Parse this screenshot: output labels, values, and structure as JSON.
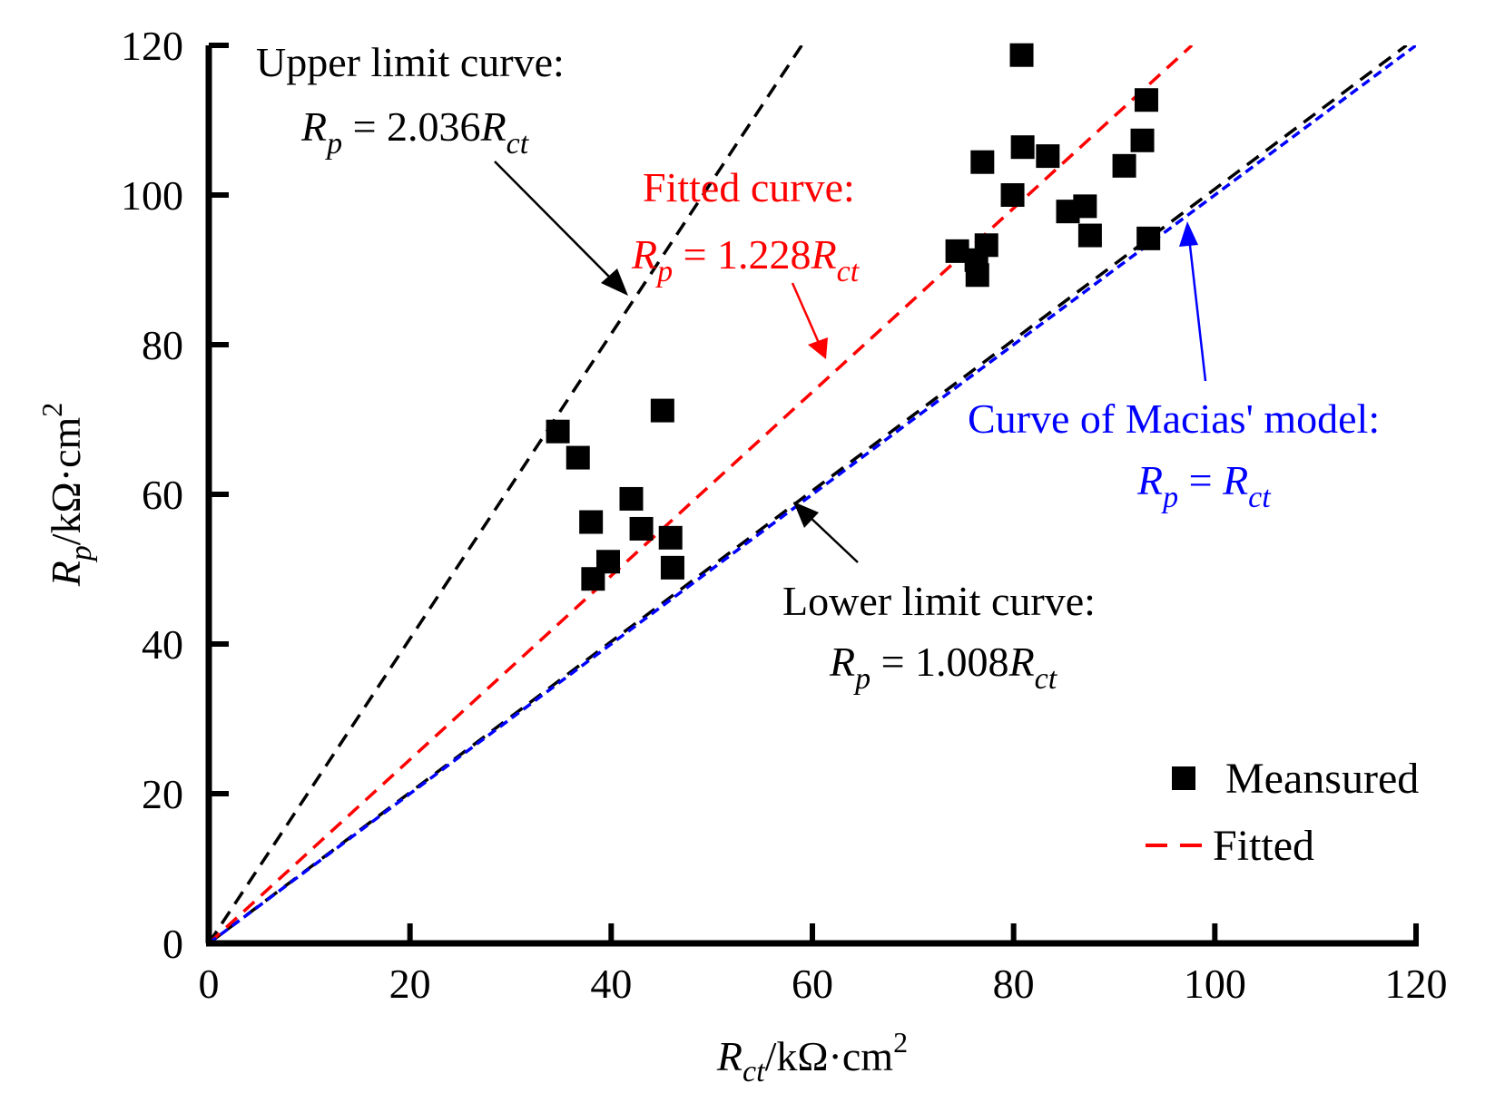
{
  "chart_data": {
    "type": "scatter",
    "xlabel": {
      "var": "R",
      "sub": "ct",
      "unit": "/kΩ·cm",
      "sup": "2"
    },
    "ylabel": {
      "var": "R",
      "sub": "p",
      "unit": "/kΩ·cm",
      "sup": "2"
    },
    "xlim": [
      0,
      120
    ],
    "ylim": [
      0,
      120
    ],
    "xticks": [
      "0",
      "20",
      "40",
      "60",
      "80",
      "100",
      "120"
    ],
    "yticks": [
      "0",
      "20",
      "40",
      "60",
      "80",
      "100",
      "120"
    ],
    "xtick_values": [
      0,
      20,
      40,
      60,
      80,
      100,
      120
    ],
    "ytick_values": [
      0,
      20,
      40,
      60,
      80,
      100,
      120
    ],
    "measured": {
      "name": "Meansured",
      "color": "#000000",
      "points": [
        [
          34.7,
          68.4
        ],
        [
          36.7,
          64.9
        ],
        [
          38.0,
          56.3
        ],
        [
          38.2,
          48.7
        ],
        [
          39.7,
          51.0
        ],
        [
          42.0,
          59.4
        ],
        [
          43.0,
          55.4
        ],
        [
          45.1,
          71.2
        ],
        [
          45.9,
          54.2
        ],
        [
          46.1,
          50.2
        ],
        [
          74.4,
          92.5
        ],
        [
          76.3,
          91.3
        ],
        [
          76.4,
          89.3
        ],
        [
          76.9,
          104.4
        ],
        [
          77.3,
          93.3
        ],
        [
          79.9,
          100.0
        ],
        [
          80.8,
          118.7
        ],
        [
          80.9,
          106.4
        ],
        [
          83.4,
          105.2
        ],
        [
          85.4,
          97.8
        ],
        [
          87.1,
          98.5
        ],
        [
          87.6,
          94.6
        ],
        [
          91.0,
          103.9
        ],
        [
          92.8,
          107.3
        ],
        [
          93.2,
          112.7
        ],
        [
          93.4,
          94.2
        ]
      ]
    },
    "lines": [
      {
        "name": "Upper limit curve",
        "slope": 2.036,
        "color": "#000000"
      },
      {
        "name": "Fitted",
        "slope": 1.228,
        "color": "#ff0000"
      },
      {
        "name": "Lower limit curve",
        "slope": 1.008,
        "color": "#000000"
      },
      {
        "name": "Curve of Macias' model",
        "slope": 1.0,
        "color": "#0000ff"
      }
    ],
    "annotations": [
      {
        "id": "upper",
        "title": "Upper limit curve:",
        "eq_var": "R",
        "eq_sub": "p",
        "eq_mid": " = 2.036",
        "eq_var2": "R",
        "eq_sub2": "ct",
        "color": "#000000"
      },
      {
        "id": "fitted",
        "title": "Fitted curve:",
        "eq_var": "R",
        "eq_sub": "p",
        "eq_mid": " = 1.228",
        "eq_var2": "R",
        "eq_sub2": "ct",
        "color": "#ff0000"
      },
      {
        "id": "macias",
        "title": "Curve of Macias' model:",
        "eq_var": "R",
        "eq_sub": "p",
        "eq_mid": " = ",
        "eq_var2": "R",
        "eq_sub2": "ct",
        "color": "#0000ff"
      },
      {
        "id": "lower",
        "title": "Lower limit curve:",
        "eq_var": "R",
        "eq_sub": "p",
        "eq_mid": " = 1.008",
        "eq_var2": "R",
        "eq_sub2": "ct",
        "color": "#000000"
      }
    ],
    "legend": [
      {
        "label": "Meansured",
        "marker": "square",
        "color": "#000000"
      },
      {
        "label": "Fitted",
        "marker": "dash",
        "color": "#ff0000"
      }
    ],
    "legend_position": "bottom-right",
    "grid": false
  }
}
